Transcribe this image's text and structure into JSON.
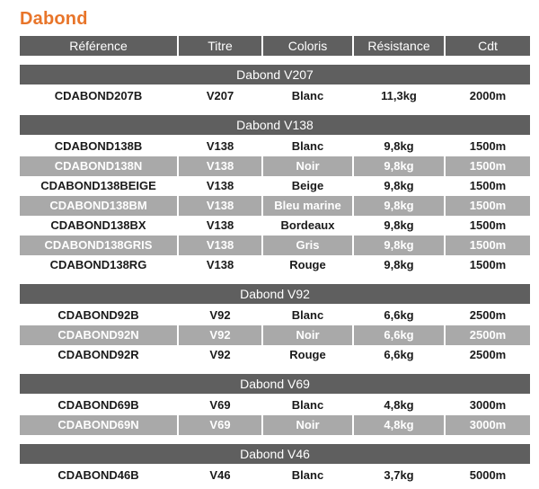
{
  "title": "Dabond",
  "columns": [
    "Référence",
    "Titre",
    "Coloris",
    "Résistance",
    "Cdt"
  ],
  "groups": [
    {
      "name": "Dabond V207",
      "rows": [
        [
          "CDABOND207B",
          "V207",
          "Blanc",
          "11,3kg",
          "2000m"
        ]
      ]
    },
    {
      "name": "Dabond V138",
      "rows": [
        [
          "CDABOND138B",
          "V138",
          "Blanc",
          "9,8kg",
          "1500m"
        ],
        [
          "CDABOND138N",
          "V138",
          "Noir",
          "9,8kg",
          "1500m"
        ],
        [
          "CDABOND138BEIGE",
          "V138",
          "Beige",
          "9,8kg",
          "1500m"
        ],
        [
          "CDABOND138BM",
          "V138",
          "Bleu marine",
          "9,8kg",
          "1500m"
        ],
        [
          "CDABOND138BX",
          "V138",
          "Bordeaux",
          "9,8kg",
          "1500m"
        ],
        [
          "CDABOND138GRIS",
          "V138",
          "Gris",
          "9,8kg",
          "1500m"
        ],
        [
          "CDABOND138RG",
          "V138",
          "Rouge",
          "9,8kg",
          "1500m"
        ]
      ]
    },
    {
      "name": "Dabond V92",
      "rows": [
        [
          "CDABOND92B",
          "V92",
          "Blanc",
          "6,6kg",
          "2500m"
        ],
        [
          "CDABOND92N",
          "V92",
          "Noir",
          "6,6kg",
          "2500m"
        ],
        [
          "CDABOND92R",
          "V92",
          "Rouge",
          "6,6kg",
          "2500m"
        ]
      ]
    },
    {
      "name": "Dabond V69",
      "rows": [
        [
          "CDABOND69B",
          "V69",
          "Blanc",
          "4,8kg",
          "3000m"
        ],
        [
          "CDABOND69N",
          "V69",
          "Noir",
          "4,8kg",
          "3000m"
        ]
      ]
    },
    {
      "name": "Dabond V46",
      "rows": [
        [
          "CDABOND46B",
          "V46",
          "Blanc",
          "3,7kg",
          "5000m"
        ]
      ]
    }
  ],
  "colors": {
    "title": "#e8752a",
    "header_bg": "#5f5f5f",
    "alt_row_bg": "#a9a9a9"
  }
}
